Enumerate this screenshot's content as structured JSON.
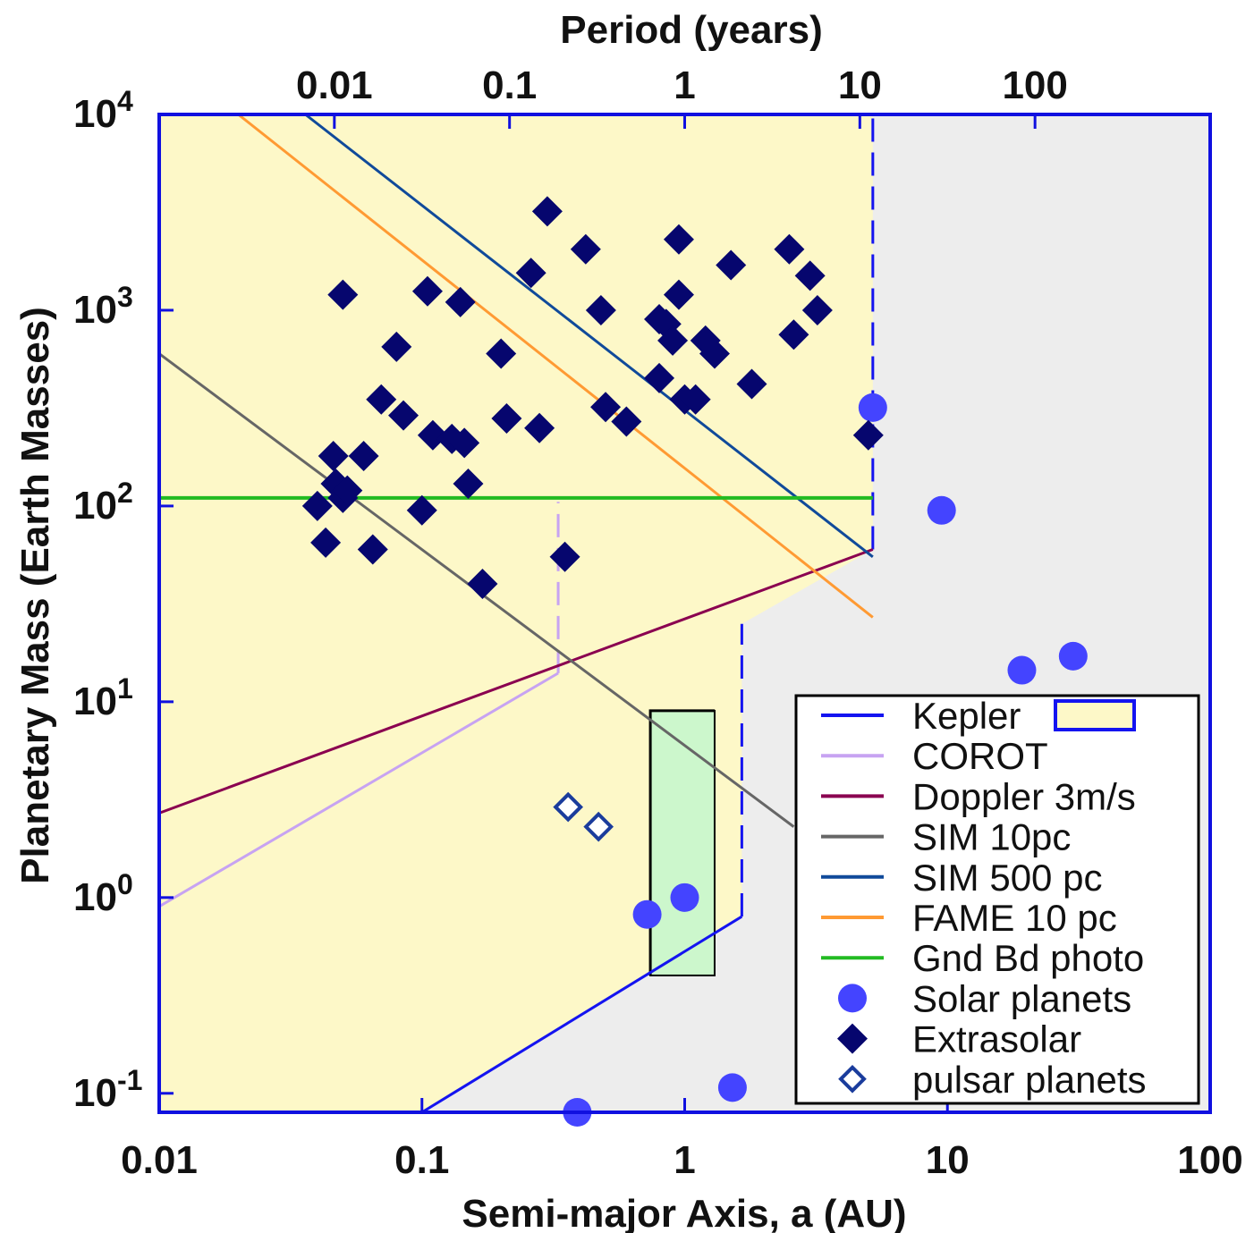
{
  "chart_data": {
    "type": "scatter",
    "title": "",
    "xlabel": "Semi-major Axis, a (AU)",
    "ylabel": "Planetary Mass (Earth Masses)",
    "x2label": "Period (years)",
    "xscale": "log",
    "yscale": "log",
    "xlim": [
      0.01,
      100
    ],
    "ylim": [
      0.08,
      10000
    ],
    "x_ticks": [
      {
        "value": 0.01,
        "label": "0.01"
      },
      {
        "value": 0.1,
        "label": "0.1"
      },
      {
        "value": 1,
        "label": "1"
      },
      {
        "value": 10,
        "label": "10"
      },
      {
        "value": 100,
        "label": "100"
      }
    ],
    "x2_ticks": [
      {
        "value": 0.01,
        "label": "0.01"
      },
      {
        "value": 0.1,
        "label": "0.1"
      },
      {
        "value": 1,
        "label": "1"
      },
      {
        "value": 10,
        "label": "10"
      },
      {
        "value": 100,
        "label": "100"
      }
    ],
    "y_ticks": [
      {
        "value": 0.1,
        "base": "10",
        "exp": "-1"
      },
      {
        "value": 1,
        "base": "10",
        "exp": "0"
      },
      {
        "value": 10,
        "base": "10",
        "exp": "1"
      },
      {
        "value": 100,
        "base": "10",
        "exp": "2"
      },
      {
        "value": 1000,
        "base": "10",
        "exp": "3"
      },
      {
        "value": 10000,
        "base": "10",
        "exp": "4"
      }
    ],
    "colors": {
      "frame": "#1010e0",
      "kepler_fill": "#fdf8c8",
      "grey_fill": "#ededed",
      "green_box": "#ccf7cc",
      "kepler": "#1414f0",
      "corot": "#c7a3f2",
      "doppler": "#8a0050",
      "sim10": "#666666",
      "sim500": "#104a9a",
      "fame": "#ff9a33",
      "gnd": "#22bb22",
      "solar": "#4444ff",
      "extrasolar": "#06066e",
      "pulsar": "#1a3c9c"
    },
    "regions": {
      "kepler_region": [
        [
          0.01,
          0.08
        ],
        [
          0.1,
          0.08
        ],
        [
          1.65,
          0.8
        ],
        [
          1.65,
          25
        ],
        [
          5.2,
          60
        ],
        [
          5.2,
          10000
        ],
        [
          0.01,
          10000
        ]
      ],
      "green_box": [
        [
          0.74,
          0.4
        ],
        [
          1.3,
          9
        ]
      ],
      "kepler_box_outline": [
        [
          0.74,
          0.4
        ],
        [
          0.74,
          9
        ],
        [
          1.3,
          9
        ]
      ]
    },
    "series": [
      {
        "name": "Kepler",
        "kind": "line",
        "dash": false,
        "points": [
          [
            0.1,
            0.08
          ],
          [
            1.65,
            0.8
          ]
        ]
      },
      {
        "name": "Kepler",
        "kind": "line",
        "dash": true,
        "points": [
          [
            1.65,
            0.8
          ],
          [
            1.65,
            25
          ]
        ]
      },
      {
        "name": "Kepler",
        "kind": "line",
        "dash": true,
        "points": [
          [
            5.2,
            60
          ],
          [
            5.2,
            10000
          ]
        ]
      },
      {
        "name": "COROT",
        "kind": "line",
        "dash": false,
        "points": [
          [
            0.01,
            0.9
          ],
          [
            0.33,
            14
          ]
        ]
      },
      {
        "name": "COROT",
        "kind": "line",
        "dash": true,
        "points": [
          [
            0.33,
            14
          ],
          [
            0.33,
            105
          ]
        ]
      },
      {
        "name": "Doppler 3m/s",
        "kind": "line",
        "dash": false,
        "points": [
          [
            0.01,
            2.7
          ],
          [
            5.2,
            60
          ]
        ]
      },
      {
        "name": "SIM 10pc",
        "kind": "line",
        "dash": false,
        "points": [
          [
            0.01,
            600
          ],
          [
            2.6,
            2.3
          ]
        ]
      },
      {
        "name": "SIM 500 pc",
        "kind": "line",
        "dash": false,
        "points": [
          [
            0.036,
            10000
          ],
          [
            5.2,
            55
          ]
        ]
      },
      {
        "name": "FAME 10 pc",
        "kind": "line",
        "dash": false,
        "points": [
          [
            0.02,
            10000
          ],
          [
            5.2,
            27
          ]
        ]
      },
      {
        "name": "Gnd Bd photo",
        "kind": "line",
        "dash": false,
        "points": [
          [
            0.01,
            110
          ],
          [
            5.2,
            110
          ]
        ]
      }
    ],
    "solar_planets": [
      [
        0.39,
        0.055
      ],
      [
        0.72,
        0.82
      ],
      [
        1.0,
        1.0
      ],
      [
        1.52,
        0.107
      ],
      [
        5.2,
        318
      ],
      [
        9.5,
        95
      ],
      [
        19.2,
        14.5
      ],
      [
        30.1,
        17.1
      ]
    ],
    "extrasolar": [
      [
        0.05,
        1200
      ],
      [
        0.04,
        100
      ],
      [
        0.043,
        65
      ],
      [
        0.046,
        180
      ],
      [
        0.047,
        130
      ],
      [
        0.05,
        110
      ],
      [
        0.052,
        120
      ],
      [
        0.06,
        180
      ],
      [
        0.065,
        60
      ],
      [
        0.07,
        350
      ],
      [
        0.08,
        650
      ],
      [
        0.085,
        290
      ],
      [
        0.1,
        95
      ],
      [
        0.105,
        1250
      ],
      [
        0.11,
        230
      ],
      [
        0.13,
        220
      ],
      [
        0.14,
        1100
      ],
      [
        0.145,
        210
      ],
      [
        0.15,
        130
      ],
      [
        0.17,
        40
      ],
      [
        0.2,
        600
      ],
      [
        0.21,
        280
      ],
      [
        0.26,
        1550
      ],
      [
        0.28,
        250
      ],
      [
        0.3,
        3200
      ],
      [
        0.35,
        55
      ],
      [
        0.42,
        2050
      ],
      [
        0.48,
        1000
      ],
      [
        0.5,
        320
      ],
      [
        0.6,
        270
      ],
      [
        0.8,
        450
      ],
      [
        0.8,
        900
      ],
      [
        0.85,
        850
      ],
      [
        0.9,
        700
      ],
      [
        0.95,
        2300
      ],
      [
        0.95,
        1200
      ],
      [
        1.0,
        350
      ],
      [
        1.1,
        350
      ],
      [
        1.2,
        700
      ],
      [
        1.3,
        600
      ],
      [
        1.5,
        1700
      ],
      [
        1.8,
        420
      ],
      [
        2.5,
        2050
      ],
      [
        2.6,
        750
      ],
      [
        3.0,
        1500
      ],
      [
        3.2,
        1000
      ],
      [
        5.0,
        230
      ]
    ],
    "pulsar_planets": [
      [
        0.36,
        2.9
      ],
      [
        0.47,
        2.3
      ]
    ],
    "legend": {
      "position": "lower-right",
      "items": [
        {
          "key": "kepler",
          "label": "Kepler",
          "symbol": "line-box"
        },
        {
          "key": "corot",
          "label": "COROT",
          "symbol": "line"
        },
        {
          "key": "doppler",
          "label": "Doppler 3m/s",
          "symbol": "line"
        },
        {
          "key": "sim10",
          "label": "SIM 10pc",
          "symbol": "line"
        },
        {
          "key": "sim500",
          "label": "SIM 500 pc",
          "symbol": "line"
        },
        {
          "key": "fame",
          "label": "FAME 10 pc",
          "symbol": "line"
        },
        {
          "key": "gnd",
          "label": "Gnd Bd photo",
          "symbol": "line"
        },
        {
          "key": "solar",
          "label": "Solar planets",
          "symbol": "circle"
        },
        {
          "key": "extrasolar",
          "label": "Extrasolar",
          "symbol": "diamond"
        },
        {
          "key": "pulsar",
          "label": "pulsar planets",
          "symbol": "diamond-open"
        }
      ]
    }
  }
}
